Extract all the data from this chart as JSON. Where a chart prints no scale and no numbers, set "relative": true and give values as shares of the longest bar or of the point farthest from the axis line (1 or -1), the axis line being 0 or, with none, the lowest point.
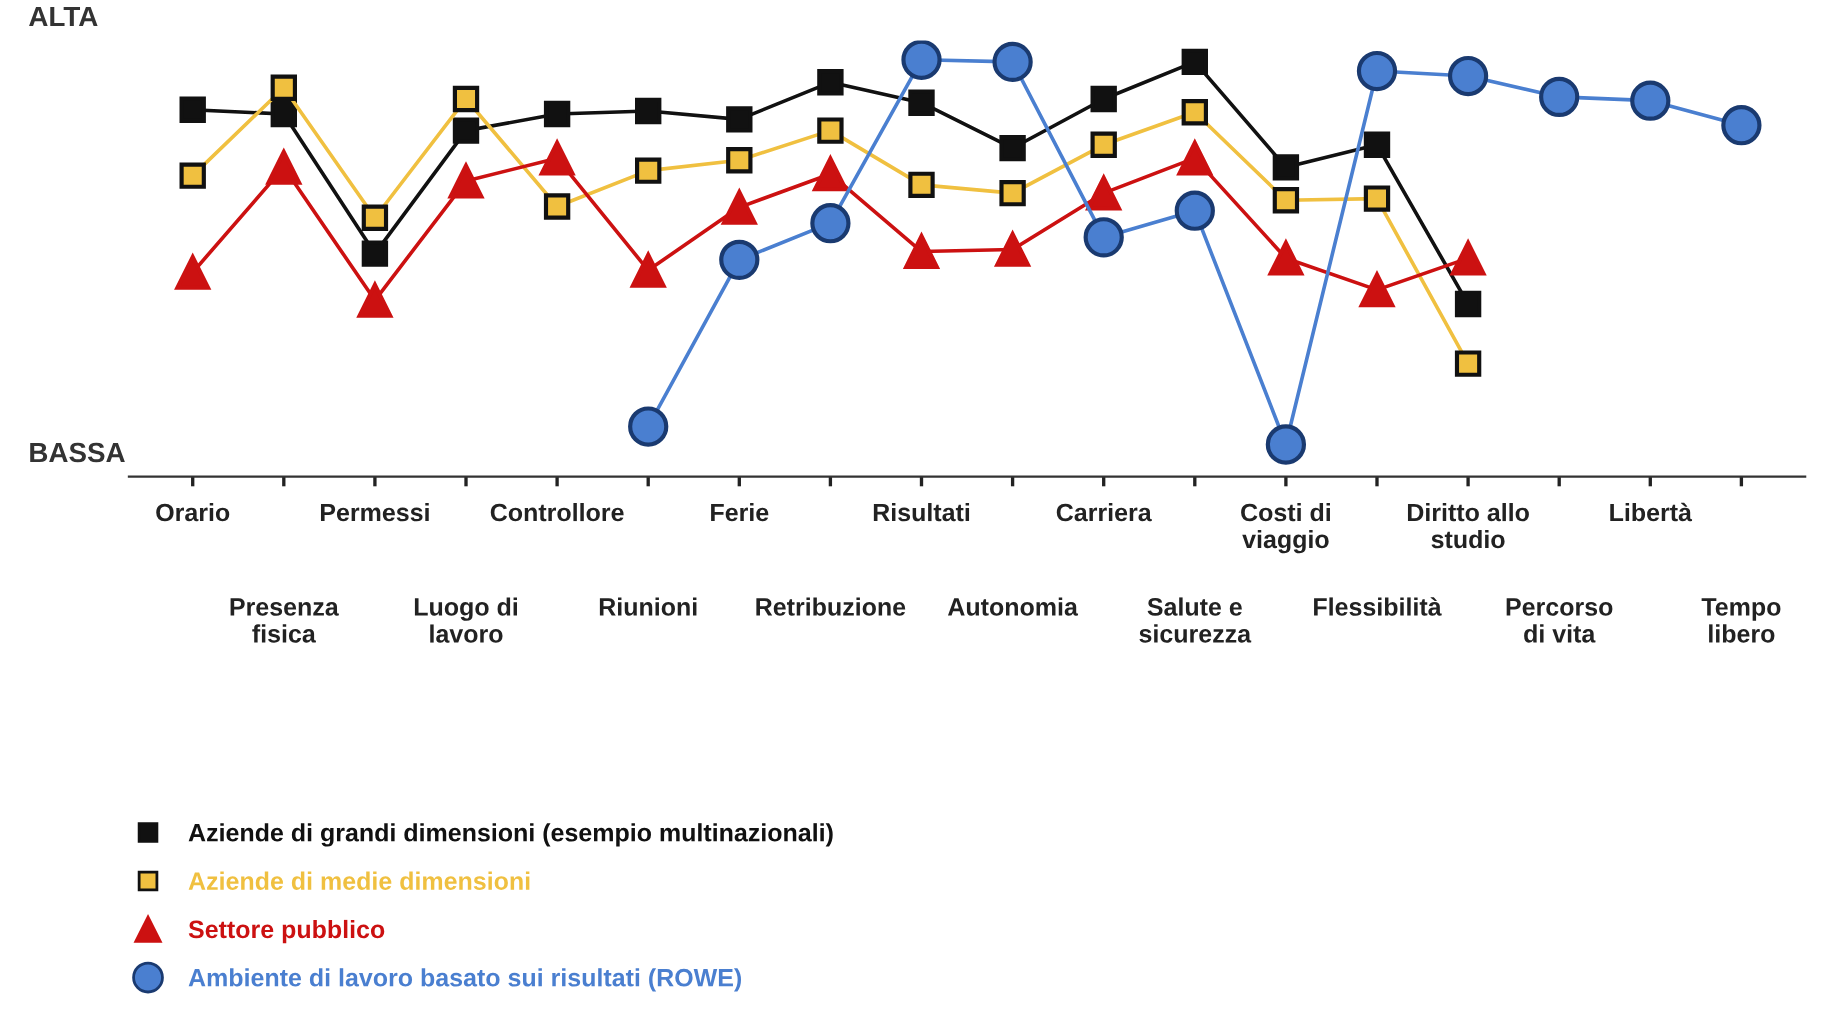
{
  "chart_data": {
    "type": "line",
    "relative": true,
    "legend": "bottom left",
    "grid": false,
    "annotations": [
      "ALTA",
      "BASSA"
    ],
    "categories": [
      "Orario",
      "Presenza\nfisica",
      "Permessi",
      "Luogo di\nlavoro",
      "Controllore",
      "Riunioni",
      "Ferie",
      "Retribuzione",
      "Risultati",
      "Autonomia",
      "Carriera",
      "Salute e\nsicurezza",
      "Costi di\nviaggio",
      "Flessibilità",
      "Diritto allo\nstudio",
      "Percorso\ndi vita",
      "Libertà",
      "Tempo\nlibero"
    ],
    "series": [
      {
        "name": "Aziende di grandi dimensioni (esempio multinazionali)",
        "color": "#111111",
        "marker": "square",
        "values": [
          0.88,
          0.87,
          0.535,
          0.83,
          0.87,
          0.877,
          0.857,
          0.946,
          0.897,
          0.788,
          0.906,
          0.995,
          0.742,
          0.796,
          0.414,
          null,
          null,
          null
        ]
      },
      {
        "name": "Aziende di medie dimensioni",
        "color": "#f0c040",
        "marker": "square",
        "values": [
          0.722,
          0.933,
          0.621,
          0.906,
          0.648,
          0.734,
          0.759,
          0.83,
          0.7,
          0.68,
          0.796,
          0.874,
          0.663,
          0.667,
          0.271,
          null,
          null,
          null
        ]
      },
      {
        "name": "Settore pubblico",
        "color": "#cc1111",
        "marker": "triangle",
        "values": [
          0.49,
          0.742,
          0.423,
          0.709,
          0.764,
          0.495,
          0.646,
          0.726,
          0.54,
          0.545,
          0.68,
          0.764,
          0.524,
          0.448,
          0.524,
          null,
          null,
          null
        ]
      },
      {
        "name": "Ambiente di lavoro basato sui risultati (ROWE)",
        "color": "#4a7fd0",
        "marker": "circle",
        "values": [
          null,
          null,
          null,
          null,
          null,
          0.12,
          0.52,
          0.608,
          1.0,
          0.995,
          0.574,
          0.638,
          0.077,
          0.973,
          0.961,
          0.911,
          0.902,
          0.843
        ]
      }
    ]
  }
}
